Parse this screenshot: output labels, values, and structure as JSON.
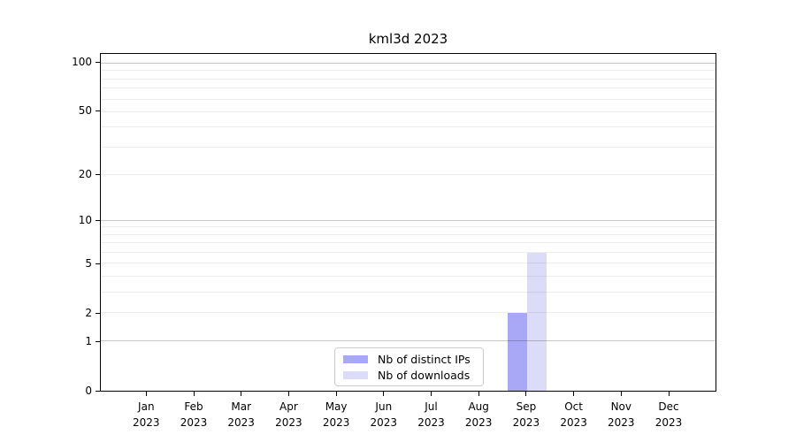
{
  "chart_data": {
    "type": "bar",
    "title": "kml3d 2023",
    "year": "2023",
    "months": [
      "Jan",
      "Feb",
      "Mar",
      "Apr",
      "May",
      "Jun",
      "Jul",
      "Aug",
      "Sep",
      "Oct",
      "Nov",
      "Dec"
    ],
    "series": [
      {
        "name": "Nb of distinct IPs",
        "color": "#a8a8f6",
        "values": [
          0,
          0,
          0,
          0,
          0,
          0,
          0,
          0,
          2,
          0,
          0,
          0
        ]
      },
      {
        "name": "Nb of downloads",
        "color": "#dcdcf9",
        "values": [
          0,
          0,
          0,
          0,
          0,
          0,
          0,
          0,
          6,
          0,
          0,
          0
        ]
      }
    ],
    "yscale": "log10(1+x)",
    "ylim": [
      0,
      115
    ],
    "yticks": [
      0,
      1,
      2,
      5,
      10,
      20,
      50,
      100
    ],
    "grid_minor": [
      2,
      3,
      4,
      5,
      6,
      7,
      8,
      9,
      20,
      30,
      40,
      50,
      60,
      70,
      80,
      90
    ],
    "grid_major": [
      1,
      10,
      100
    ],
    "legend_position": "lower center",
    "grid": true
  }
}
